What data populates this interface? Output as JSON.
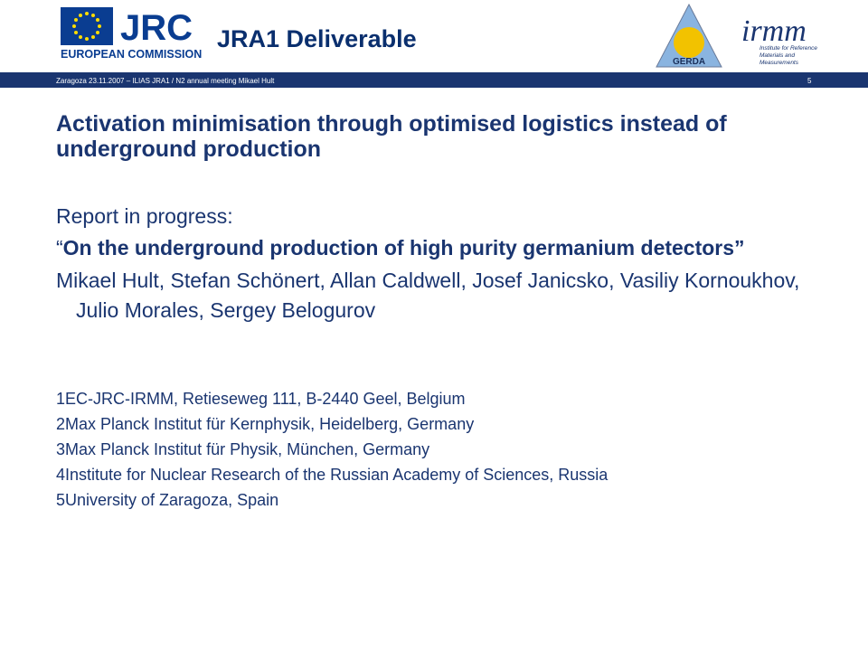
{
  "header": {
    "jrc_logo": "JRC",
    "commission": "EUROPEAN COMMISSION",
    "title": "JRA1 Deliverable",
    "gerda_logo": "GERDA",
    "irmm_logo": "irmm",
    "irmm_caption": "Institute for Reference Materials and Measurements"
  },
  "footer_bar": {
    "meeting": "Zaragoza 23.11.2007 – ILIAS JRA1 / N2 annual meeting Mikael Hult",
    "page": "5"
  },
  "slide": {
    "heading": "Activation minimisation through optimised logistics instead of underground production",
    "report_intro": "Report in progress:",
    "quote_open": "“",
    "report_title": "On the underground production of high purity germanium detectors”",
    "authors": "Mikael Hult, Stefan Schönert, Allan Caldwell, Josef Janicsko, Vasiliy Kornoukhov, Julio Morales, Sergey Belogurov",
    "affiliations": [
      "1EC-JRC-IRMM, Retieseweg 111, B-2440 Geel, Belgium",
      "2Max Planck Institut für Kernphysik, Heidelberg, Germany",
      "3Max Planck Institut für Physik, München, Germany",
      "4Institute for Nuclear Research of the Russian Academy of Sciences, Russia",
      "5University of Zaragoza, Spain"
    ]
  }
}
